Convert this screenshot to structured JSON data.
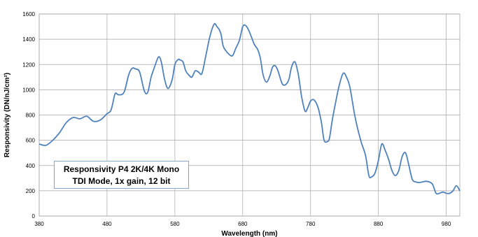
{
  "chart_data": {
    "type": "line",
    "xlabel": "Wavelength (nm)",
    "ylabel": "Responsivity (DN/nJ/cm²)",
    "xlim": [
      380,
      1000
    ],
    "ylim": [
      0,
      1600
    ],
    "x_ticks": [
      380,
      480,
      580,
      680,
      780,
      880,
      980
    ],
    "y_ticks": [
      0,
      200,
      400,
      600,
      800,
      1000,
      1200,
      1400,
      1600
    ],
    "grid": true,
    "annotation": [
      "Responsivity  P4 2K/4K Mono",
      "TDI Mode, 1x gain, 12 bit"
    ],
    "line_color": "#4f81bd",
    "series": [
      {
        "x": [
          380,
          390,
          400,
          410,
          420,
          430,
          440,
          450,
          460,
          470,
          480,
          485,
          488,
          492,
          497,
          505,
          512,
          517,
          522,
          528,
          535,
          540,
          545,
          550,
          556,
          560,
          565,
          570,
          576,
          580,
          585,
          588,
          592,
          596,
          600,
          605,
          610,
          615,
          620,
          626,
          632,
          638,
          642,
          645,
          648,
          651,
          655,
          660,
          665,
          670,
          675,
          680,
          684,
          688,
          692,
          697,
          702,
          706,
          710,
          715,
          720,
          724,
          728,
          732,
          738,
          743,
          748,
          752,
          757,
          762,
          767,
          772,
          776,
          780,
          785,
          791,
          796,
          800,
          805,
          808,
          812,
          817,
          822,
          828,
          833,
          838,
          845,
          850,
          855,
          861,
          866,
          870,
          875,
          880,
          885,
          890,
          895,
          900,
          905,
          910,
          915,
          920,
          925,
          930,
          935,
          940,
          945,
          950,
          955,
          960,
          965,
          970,
          975,
          980,
          985,
          990,
          995,
          1000
        ],
        "y": [
          570,
          560,
          600,
          660,
          740,
          780,
          770,
          790,
          750,
          760,
          810,
          830,
          880,
          970,
          960,
          980,
          1120,
          1170,
          1165,
          1140,
          990,
          980,
          1100,
          1180,
          1260,
          1220,
          1080,
          1010,
          1080,
          1200,
          1240,
          1235,
          1220,
          1150,
          1120,
          1100,
          1150,
          1140,
          1130,
          1280,
          1430,
          1520,
          1500,
          1480,
          1440,
          1350,
          1310,
          1280,
          1270,
          1330,
          1390,
          1500,
          1510,
          1480,
          1430,
          1360,
          1320,
          1250,
          1120,
          1060,
          1110,
          1180,
          1190,
          1150,
          1050,
          1040,
          1080,
          1180,
          1220,
          1120,
          940,
          830,
          860,
          910,
          920,
          860,
          740,
          600,
          590,
          620,
          760,
          900,
          1030,
          1130,
          1100,
          1020,
          800,
          680,
          580,
          480,
          320,
          310,
          340,
          440,
          570,
          520,
          450,
          360,
          320,
          360,
          470,
          500,
          400,
          290,
          270,
          265,
          270,
          275,
          270,
          250,
          180,
          180,
          190,
          180,
          180,
          200,
          240,
          200
        ]
      }
    ]
  }
}
